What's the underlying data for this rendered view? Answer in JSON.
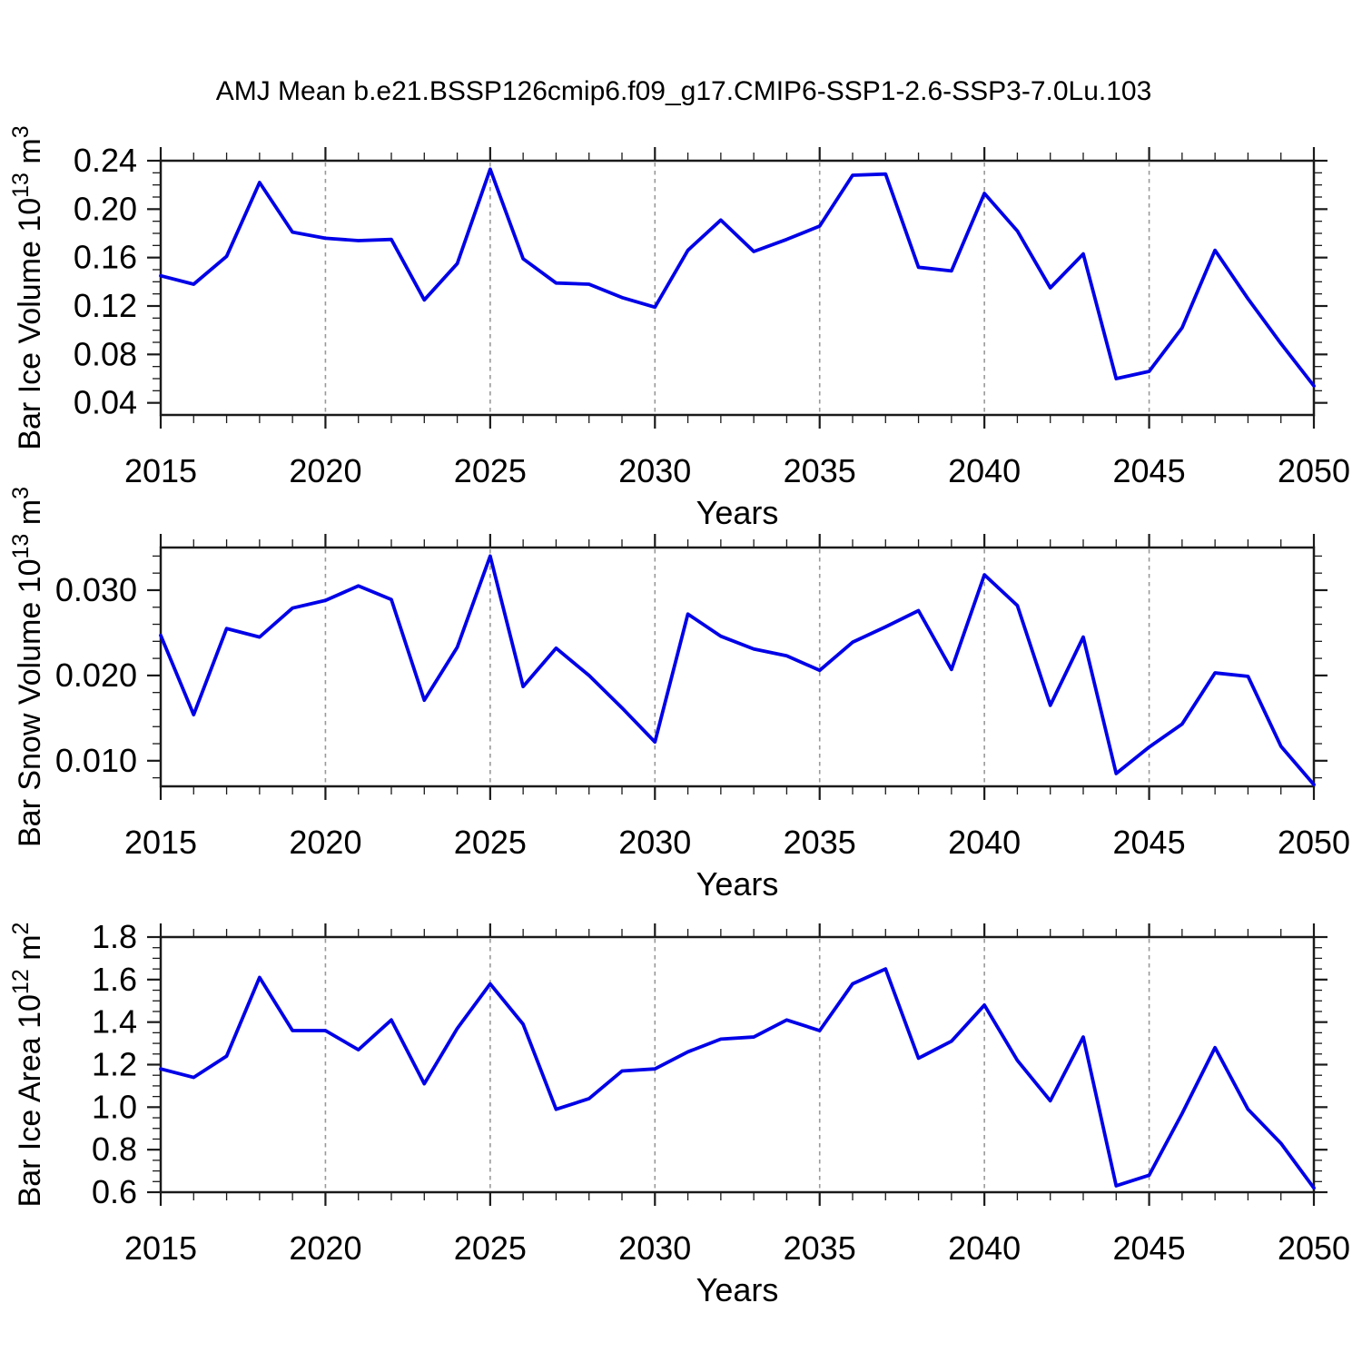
{
  "title": "AMJ Mean b.e21.BSSP126cmip6.f09_g17.CMIP6-SSP1-2.6-SSP3-7.0Lu.103",
  "style": {
    "line_color": "#0000E8",
    "grid_color": "#999999",
    "axis_color": "#1A1A1A",
    "text_color": "#000000",
    "background": "#FFFFFF"
  },
  "x_axis": {
    "label": "Years",
    "start": 2015,
    "end": 2050,
    "minor_step": 1,
    "major_ticks": [
      2015,
      2020,
      2025,
      2030,
      2035,
      2040,
      2045,
      2050
    ],
    "major_tick_labels": [
      "2015",
      "2020",
      "2025",
      "2030",
      "2035",
      "2040",
      "2045",
      "2050"
    ],
    "gridline_years": [
      2020,
      2025,
      2030,
      2035,
      2040,
      2045
    ]
  },
  "chart_data": [
    {
      "type": "line",
      "name": "bar-ice-volume",
      "ylabel_text": "Bar Ice Volume",
      "ylabel_scale": "10",
      "ylabel_scale_exp": "13",
      "ylabel_unit": " m",
      "ylabel_unit_exp": "3",
      "xlabel": "Years",
      "ylim": [
        0.03,
        0.24
      ],
      "y_tick_values": [
        0.04,
        0.08,
        0.12,
        0.16,
        0.2,
        0.24
      ],
      "y_tick_labels": [
        "0.04",
        "0.08",
        "0.12",
        "0.16",
        "0.20",
        "0.24"
      ],
      "y_minor_step": 0.01,
      "values": [
        0.145,
        0.138,
        0.161,
        0.222,
        0.181,
        0.176,
        0.174,
        0.175,
        0.125,
        0.155,
        0.233,
        0.159,
        0.139,
        0.138,
        0.127,
        0.119,
        0.166,
        0.191,
        0.165,
        0.175,
        0.186,
        0.228,
        0.229,
        0.152,
        0.149,
        0.213,
        0.182,
        0.135,
        0.163,
        0.06,
        0.066,
        0.102,
        0.166,
        0.126,
        0.089,
        0.054
      ]
    },
    {
      "type": "line",
      "name": "bar-snow-volume",
      "ylabel_text": "Bar Snow Volume",
      "ylabel_scale": "10",
      "ylabel_scale_exp": "13",
      "ylabel_unit": " m",
      "ylabel_unit_exp": "3",
      "xlabel": "Years",
      "ylim": [
        0.007,
        0.035
      ],
      "y_tick_values": [
        0.01,
        0.02,
        0.03
      ],
      "y_tick_labels": [
        "0.010",
        "0.020",
        "0.030"
      ],
      "y_minor_step": 0.002,
      "values": [
        0.0247,
        0.0154,
        0.0255,
        0.0245,
        0.0279,
        0.0288,
        0.0305,
        0.0289,
        0.0171,
        0.0233,
        0.034,
        0.0187,
        0.0232,
        0.02,
        0.0162,
        0.0122,
        0.0272,
        0.0246,
        0.0231,
        0.0223,
        0.0206,
        0.0239,
        0.0257,
        0.0276,
        0.0207,
        0.0318,
        0.0282,
        0.0165,
        0.0245,
        0.0085,
        0.0116,
        0.0143,
        0.0203,
        0.0199,
        0.0117,
        0.0072
      ]
    },
    {
      "type": "line",
      "name": "bar-ice-area",
      "ylabel_text": "Bar Ice Area",
      "ylabel_scale": "10",
      "ylabel_scale_exp": "12",
      "ylabel_unit": " m",
      "ylabel_unit_exp": "2",
      "xlabel": "Years",
      "ylim": [
        0.6,
        1.8
      ],
      "y_tick_values": [
        0.6,
        0.8,
        1.0,
        1.2,
        1.4,
        1.6,
        1.8
      ],
      "y_tick_labels": [
        "0.6",
        "0.8",
        "1.0",
        "1.2",
        "1.4",
        "1.6",
        "1.8"
      ],
      "y_minor_step": 0.05,
      "values": [
        1.18,
        1.14,
        1.24,
        1.61,
        1.36,
        1.36,
        1.27,
        1.41,
        1.11,
        1.37,
        1.58,
        1.39,
        0.99,
        1.04,
        1.17,
        1.18,
        1.26,
        1.32,
        1.33,
        1.41,
        1.36,
        1.58,
        1.65,
        1.23,
        1.31,
        1.48,
        1.22,
        1.03,
        1.33,
        0.63,
        0.68,
        0.97,
        1.28,
        0.99,
        0.83,
        0.62
      ]
    }
  ]
}
